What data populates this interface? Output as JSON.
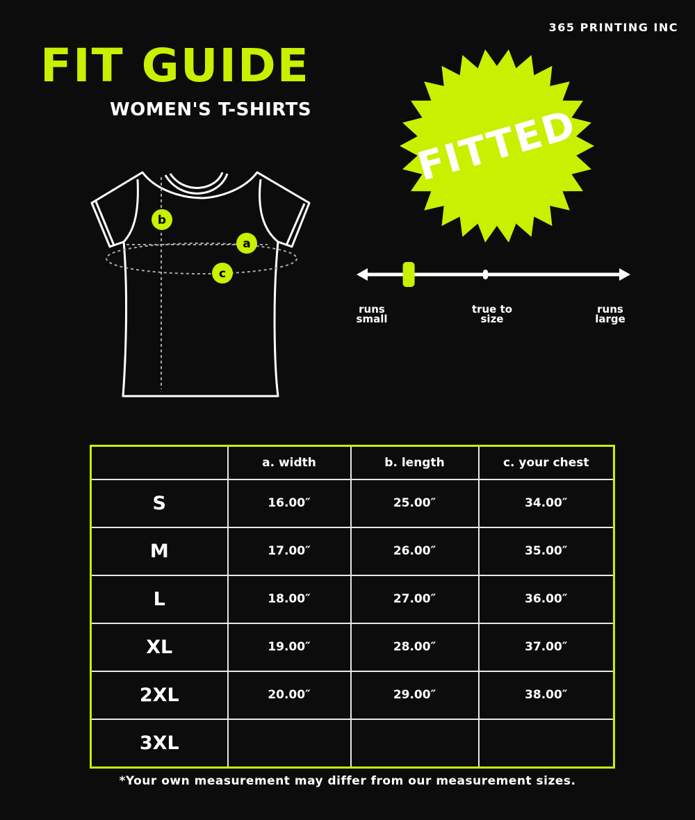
{
  "brand": "365 PRINTING INC",
  "title": "FIT GUIDE",
  "subtitle": "WOMEN'S T-SHIRTS",
  "accent_color": "#c8f000",
  "badge": "FITTED",
  "diagram_markers": [
    "a",
    "b",
    "c"
  ],
  "fit_scale": {
    "labels": [
      "runs small",
      "true to size",
      "runs large"
    ],
    "position": -0.62,
    "range": [
      -1,
      1
    ]
  },
  "table": {
    "headers": [
      "",
      "a. width",
      "b. length",
      "c. your chest"
    ],
    "rows": [
      [
        "S",
        "16.00″",
        "25.00″",
        "34.00″"
      ],
      [
        "M",
        "17.00″",
        "26.00″",
        "35.00″"
      ],
      [
        "L",
        "18.00″",
        "27.00″",
        "36.00″"
      ],
      [
        "XL",
        "19.00″",
        "28.00″",
        "37.00″"
      ],
      [
        "2XL",
        "20.00″",
        "29.00″",
        "38.00″"
      ],
      [
        "3XL",
        "",
        "",
        ""
      ]
    ]
  },
  "footnote": "*Your own measurement may differ from our measurement sizes."
}
